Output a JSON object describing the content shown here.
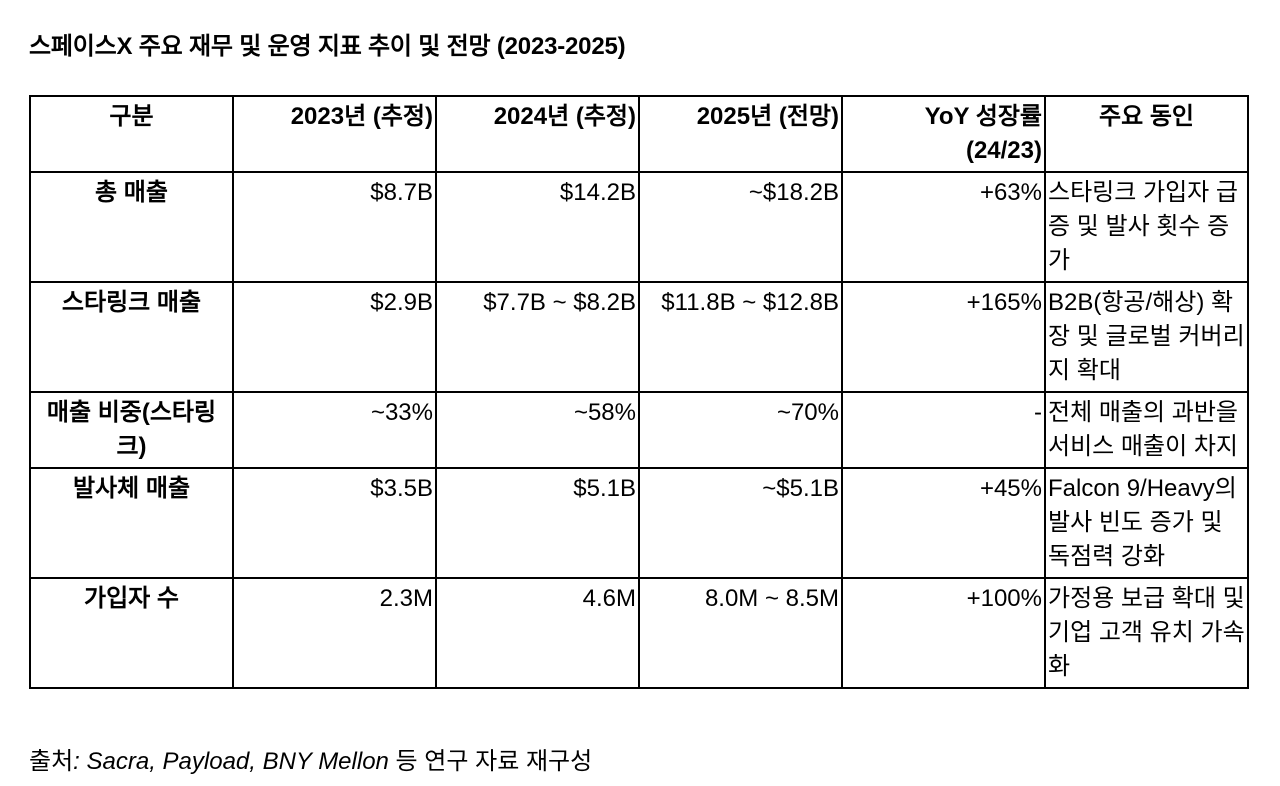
{
  "title": "스페이스X 주요 재무 및 운영 지표 추이 및 전망 (2023-2025)",
  "table": {
    "headers": [
      "구분",
      "2023년 (추정)",
      "2024년 (추정)",
      "2025년 (전망)",
      "YoY 성장률 (24/23)",
      "주요 동인"
    ],
    "rows": [
      [
        "총 매출",
        "$8.7B",
        "$14.2B",
        "~$18.2B",
        "+63%",
        "스타링크 가입자 급증 및 발사 횟수 증가"
      ],
      [
        "스타링크 매출",
        "$2.9B",
        "$7.7B ~ $8.2B",
        "$11.8B ~ $12.8B",
        "+165%",
        "B2B(항공/해상) 확장 및 글로벌 커버리지 확대"
      ],
      [
        "매출 비중(스타링크)",
        "~33%",
        "~58%",
        "~70%",
        "-",
        "전체 매출의 과반을 서비스 매출이 차지"
      ],
      [
        "발사체 매출",
        "$3.5B",
        "$5.1B",
        "~$5.1B",
        "+45%",
        "Falcon 9/Heavy의 발사 빈도 증가 및 독점력 강화"
      ],
      [
        "가입자 수",
        "2.3M",
        "4.6M",
        "8.0M ~ 8.5M",
        "+100%",
        "가정용 보급 확대 및 기업 고객 유치 가속화"
      ]
    ]
  },
  "source": {
    "prefix": "출처",
    "names": ": Sacra, Payload, BNY Mellon",
    "suffix": " 등 연구 자료 재구성"
  }
}
